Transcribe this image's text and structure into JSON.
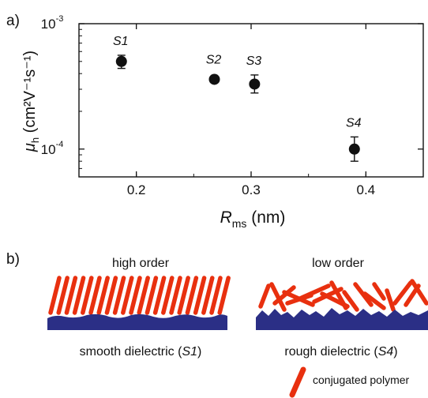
{
  "panel_a_label": "a)",
  "panel_b_label": "b)",
  "chart_data": {
    "type": "scatter",
    "xlabel": "R",
    "xlabel_sub": "ms",
    "xlabel_unit": " (nm)",
    "ylabel_mu": "μ",
    "ylabel_sub": "h",
    "ylabel_unit": " (cm²V⁻¹s⁻¹)",
    "xlim": [
      0.15,
      0.45
    ],
    "ylim": [
      6e-05,
      0.001
    ],
    "yscale": "log",
    "xticks": [
      0.2,
      0.3,
      0.4
    ],
    "xtick_labels": [
      "0.2",
      "0.3",
      "0.4"
    ],
    "yticks": [
      0.0001,
      0.001
    ],
    "ytick_labels": [
      {
        "base": "10",
        "exp": "-4"
      },
      {
        "base": "10",
        "exp": "-3"
      }
    ],
    "points": [
      {
        "label": "S1",
        "x": 0.187,
        "y": 0.0005,
        "err_low": 0.00044,
        "err_high": 0.00056
      },
      {
        "label": "S2",
        "x": 0.268,
        "y": 0.00036,
        "err_low": 0.00035,
        "err_high": 0.00037
      },
      {
        "label": "S3",
        "x": 0.303,
        "y": 0.00033,
        "err_low": 0.00028,
        "err_high": 0.00039
      },
      {
        "label": "S4",
        "x": 0.39,
        "y": 0.0001,
        "err_low": 8e-05,
        "err_high": 0.000125
      }
    ]
  },
  "schematic": {
    "left_title": "high order",
    "right_title": "low order",
    "left_caption_prefix": "smooth dielectric (",
    "left_caption_sample": "S1",
    "left_caption_suffix": ")",
    "right_caption_prefix": "rough dielectric (",
    "right_caption_sample": "S4",
    "right_caption_suffix": ")",
    "legend_text": "conjugated polymer",
    "polymer_color": "#e8300f",
    "dielectric_color": "#2b2f86"
  }
}
